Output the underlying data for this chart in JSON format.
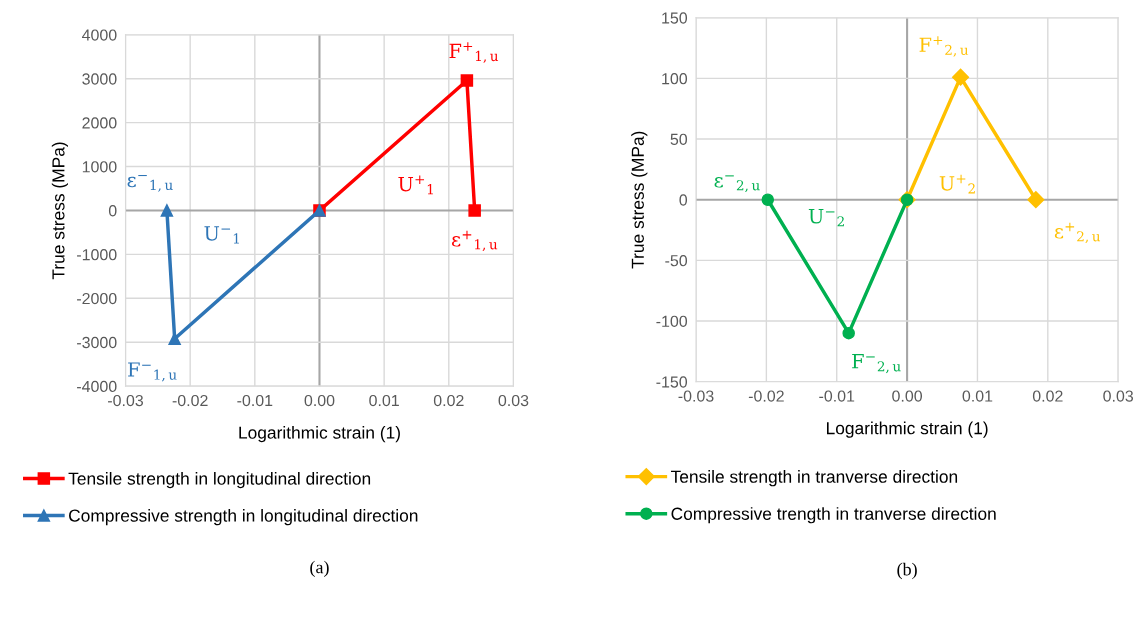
{
  "chart_data": [
    {
      "type": "line",
      "xlabel": "Logarithmic strain (1)",
      "ylabel": "True stress (MPa)",
      "series": [
        {
          "name": "Tensile strength in longitudinal direction",
          "color": "#ff0000",
          "marker": "square",
          "x": [
            0,
            0.0228,
            0.024
          ],
          "values": [
            0,
            2960,
            0
          ]
        },
        {
          "name": "Compressive strength in longitudinal direction",
          "color": "#2e75b6",
          "marker": "triangle",
          "x": [
            0,
            -0.0224,
            -0.0236
          ],
          "values": [
            0,
            -2920,
            0
          ]
        }
      ],
      "xlim": [
        -0.03,
        0.03
      ],
      "xticks": [
        {
          "value": -0.03,
          "label": "-0.03"
        },
        {
          "value": -0.02,
          "label": "-0.02"
        },
        {
          "value": -0.01,
          "label": "-0.01"
        },
        {
          "value": 0,
          "label": "0.00"
        },
        {
          "value": 0.01,
          "label": "0.01"
        },
        {
          "value": 0.02,
          "label": "0.02"
        },
        {
          "value": 0.03,
          "label": "0.03"
        }
      ],
      "ylim": [
        -4000,
        4000
      ],
      "yticks": [
        -4000,
        -3000,
        -2000,
        -1000,
        0,
        1000,
        2000,
        3000,
        4000
      ],
      "grid": true,
      "legend": "bottom",
      "annotations": [
        {
          "text": "F$^{+}$$_{1,u}$",
          "x": 0.0228,
          "y": 2960
        },
        {
          "text": "ε$^{+}$$_{1,u}$",
          "x": 0.024,
          "y": 0
        },
        "U$^{+}$$_{1}$",
        {
          "text": "ε$^{−}$$_{1,u}$",
          "x": -0.0236,
          "y": 0
        },
        {
          "text": "F$^{−}$$_{1,u}$",
          "x": -0.0224,
          "y": -2920
        },
        "U$^{−}$$_{1}$",
        "(a)"
      ]
    },
    {
      "type": "line",
      "xlabel": "Logarithmic strain (1)",
      "ylabel": "True stress (MPa)",
      "series": [
        {
          "name": "Tensile strength in tranverse direction",
          "color": "#ffc000",
          "marker": "diamond",
          "x": [
            0,
            0.0076,
            0.0183
          ],
          "values": [
            0,
            101,
            0
          ]
        },
        {
          "name": "Compressive trength in tranverse direction",
          "color": "#00b050",
          "marker": "circle",
          "x": [
            0,
            -0.0083,
            -0.0198
          ],
          "values": [
            0,
            -110,
            0
          ]
        }
      ],
      "xlim": [
        -0.03,
        0.03
      ],
      "xticks": [
        {
          "value": -0.03,
          "label": "-0.03"
        },
        {
          "value": -0.02,
          "label": "-0.02"
        },
        {
          "value": -0.01,
          "label": "-0.01"
        },
        {
          "value": 0,
          "label": "0.00"
        },
        {
          "value": 0.01,
          "label": "0.01"
        },
        {
          "value": 0.02,
          "label": "0.02"
        },
        {
          "value": 0.03,
          "label": "0.03"
        }
      ],
      "ylim": [
        -150,
        150
      ],
      "yticks": [
        -150,
        -100,
        -50,
        0,
        50,
        100,
        150
      ],
      "grid": true,
      "legend": "bottom",
      "annotations": [
        {
          "text": "F$^{+}$$_{2,u}$",
          "x": 0.0076,
          "y": 101
        },
        {
          "text": "ε$^{+}$$_{2,u}$",
          "x": 0.0183,
          "y": 0
        },
        "U$^{+}$$_{2}$",
        {
          "text": "ε$^{−}$$_{2,u}$",
          "x": -0.0198,
          "y": 0
        },
        {
          "text": "F$^{−}$$_{2,u}$",
          "x": -0.0083,
          "y": -110
        },
        "U$^{−}$$_{2}$",
        "(b)"
      ]
    }
  ]
}
